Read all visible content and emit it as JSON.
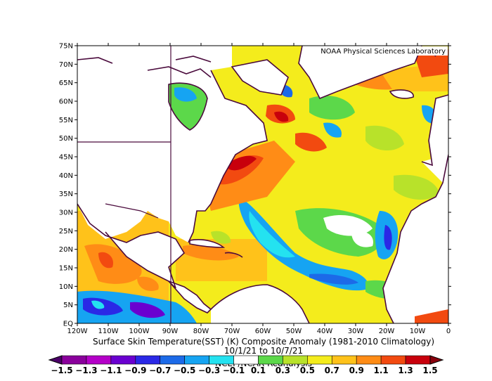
{
  "credit": "NOAA Physical Sciences Laboratory",
  "title_line1": "Surface Skin Temperature(SST) (K) Composite Anomaly (1981-2010 Climatology)",
  "title_line2": "10/1/21 to 10/7/21",
  "title_line3": "NCEP/NCAR Reanalysis",
  "lat_labels": [
    "EQ",
    "5N",
    "10N",
    "15N",
    "20N",
    "25N",
    "30N",
    "35N",
    "40N",
    "45N",
    "50N",
    "55N",
    "60N",
    "65N",
    "70N",
    "75N"
  ],
  "lon_labels": [
    "120W",
    "110W",
    "100W",
    "90W",
    "80W",
    "70W",
    "60W",
    "50W",
    "40W",
    "30W",
    "20W",
    "10W",
    "0"
  ],
  "colorbar_labels": [
    "−1.5",
    "−1.3",
    "−1.1",
    "−0.9",
    "−0.7",
    "−0.5",
    "−0.3",
    "−0.1",
    "0.1",
    "0.3",
    "0.5",
    "0.7",
    "0.9",
    "1.1",
    "1.3",
    "1.5"
  ],
  "colorbar_colors": [
    "#4b0068",
    "#8a009c",
    "#b400c8",
    "#6a00d0",
    "#2a28e6",
    "#1c6ae8",
    "#16a4f2",
    "#24e2f0",
    "#ffffff",
    "#5cd84a",
    "#b8e22a",
    "#f4ec1c",
    "#ffc21a",
    "#ff8c16",
    "#f24a10",
    "#c8000c",
    "#88000c"
  ],
  "map_extent": {
    "lon_min": -120,
    "lon_max": 0,
    "lat_min": 0,
    "lat_max": 75
  }
}
